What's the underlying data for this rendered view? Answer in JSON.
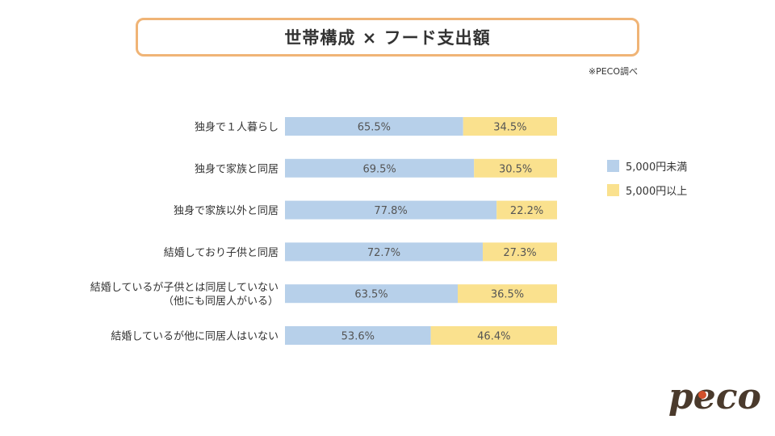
{
  "header": {
    "title": "世帯構成 × フード支出額",
    "source": "※PECO調べ"
  },
  "colors": {
    "under_5000": "#b7d0ea",
    "over_5000": "#fae18e",
    "title_border": "#f0b476",
    "text": "#333333"
  },
  "chart_data": {
    "type": "bar",
    "orientation": "horizontal",
    "stacked": true,
    "percent": true,
    "title": "世帯構成 × フード支出額",
    "categories": [
      [
        "独身で１人暮らし"
      ],
      [
        "独身で家族と同居"
      ],
      [
        "独身で家族以外と同居"
      ],
      [
        "結婚しており子供と同居"
      ],
      [
        "結婚しているが子供とは同居していない",
        "（他にも同居人がいる）"
      ],
      [
        "結婚しているが他に同居人はいない"
      ]
    ],
    "series": [
      {
        "name": "5,000円未満",
        "color": "#b7d0ea",
        "values": [
          65.5,
          69.5,
          77.8,
          72.7,
          63.5,
          53.6
        ],
        "labels": [
          "65.5%",
          "69.5%",
          "77.8%",
          "72.7%",
          "63.5%",
          "53.6%"
        ]
      },
      {
        "name": "5,000円以上",
        "color": "#fae18e",
        "values": [
          34.5,
          30.5,
          22.2,
          27.3,
          36.5,
          46.4
        ],
        "labels": [
          "34.5%",
          "30.5%",
          "22.2%",
          "27.3%",
          "36.5%",
          "46.4%"
        ]
      }
    ],
    "xlim": [
      0,
      100
    ],
    "grid": false,
    "legend": "right"
  },
  "legend": {
    "items": [
      {
        "label": "5,000円未満",
        "color": "#b7d0ea"
      },
      {
        "label": "5,000円以上",
        "color": "#fae18e"
      }
    ]
  },
  "logo": {
    "text": "peco"
  }
}
